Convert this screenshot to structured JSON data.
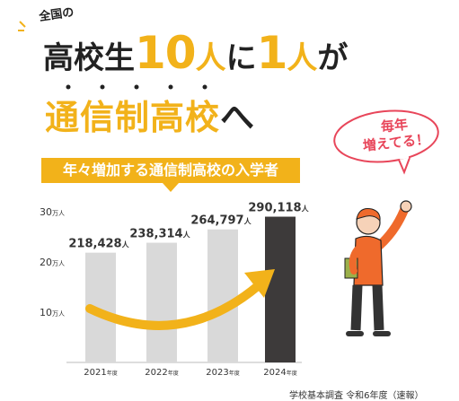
{
  "headline": {
    "intro": "全国の",
    "line1_a": "高校生",
    "line1_num1": "10",
    "line1_unit1": "人",
    "line1_b": "に",
    "line1_num2": "1",
    "line1_unit2": "人",
    "line1_c": "が",
    "line2_main": "通信制高校",
    "line2_end": "へ"
  },
  "bubble": {
    "line1": "毎年",
    "line2": "増えてる！"
  },
  "banner": {
    "text": "年々増加する通信制高校の入学者"
  },
  "source": "学校基本調査 令和6年度（速報）",
  "colors": {
    "accent": "#f2b21a",
    "bar": "#d9d9d9",
    "bar_highlight": "#3d3a3a",
    "bubble": "#e8465a",
    "person_shirt": "#ef6a2c"
  },
  "chart_data": {
    "type": "bar",
    "categories": [
      "2021年度",
      "2022年度",
      "2023年度",
      "2024年度"
    ],
    "values": [
      218428,
      238314,
      264797,
      290118
    ],
    "value_labels": [
      "218,428",
      "238,314",
      "264,797",
      "290,118"
    ],
    "value_unit": "人",
    "yticks": [
      {
        "value": 100000,
        "label": "10万人"
      },
      {
        "value": 200000,
        "label": "20万人"
      },
      {
        "value": 300000,
        "label": "30万人"
      }
    ],
    "ylim": [
      0,
      300000
    ],
    "grid": false,
    "highlight_index": 3,
    "trend_arrow": true
  }
}
